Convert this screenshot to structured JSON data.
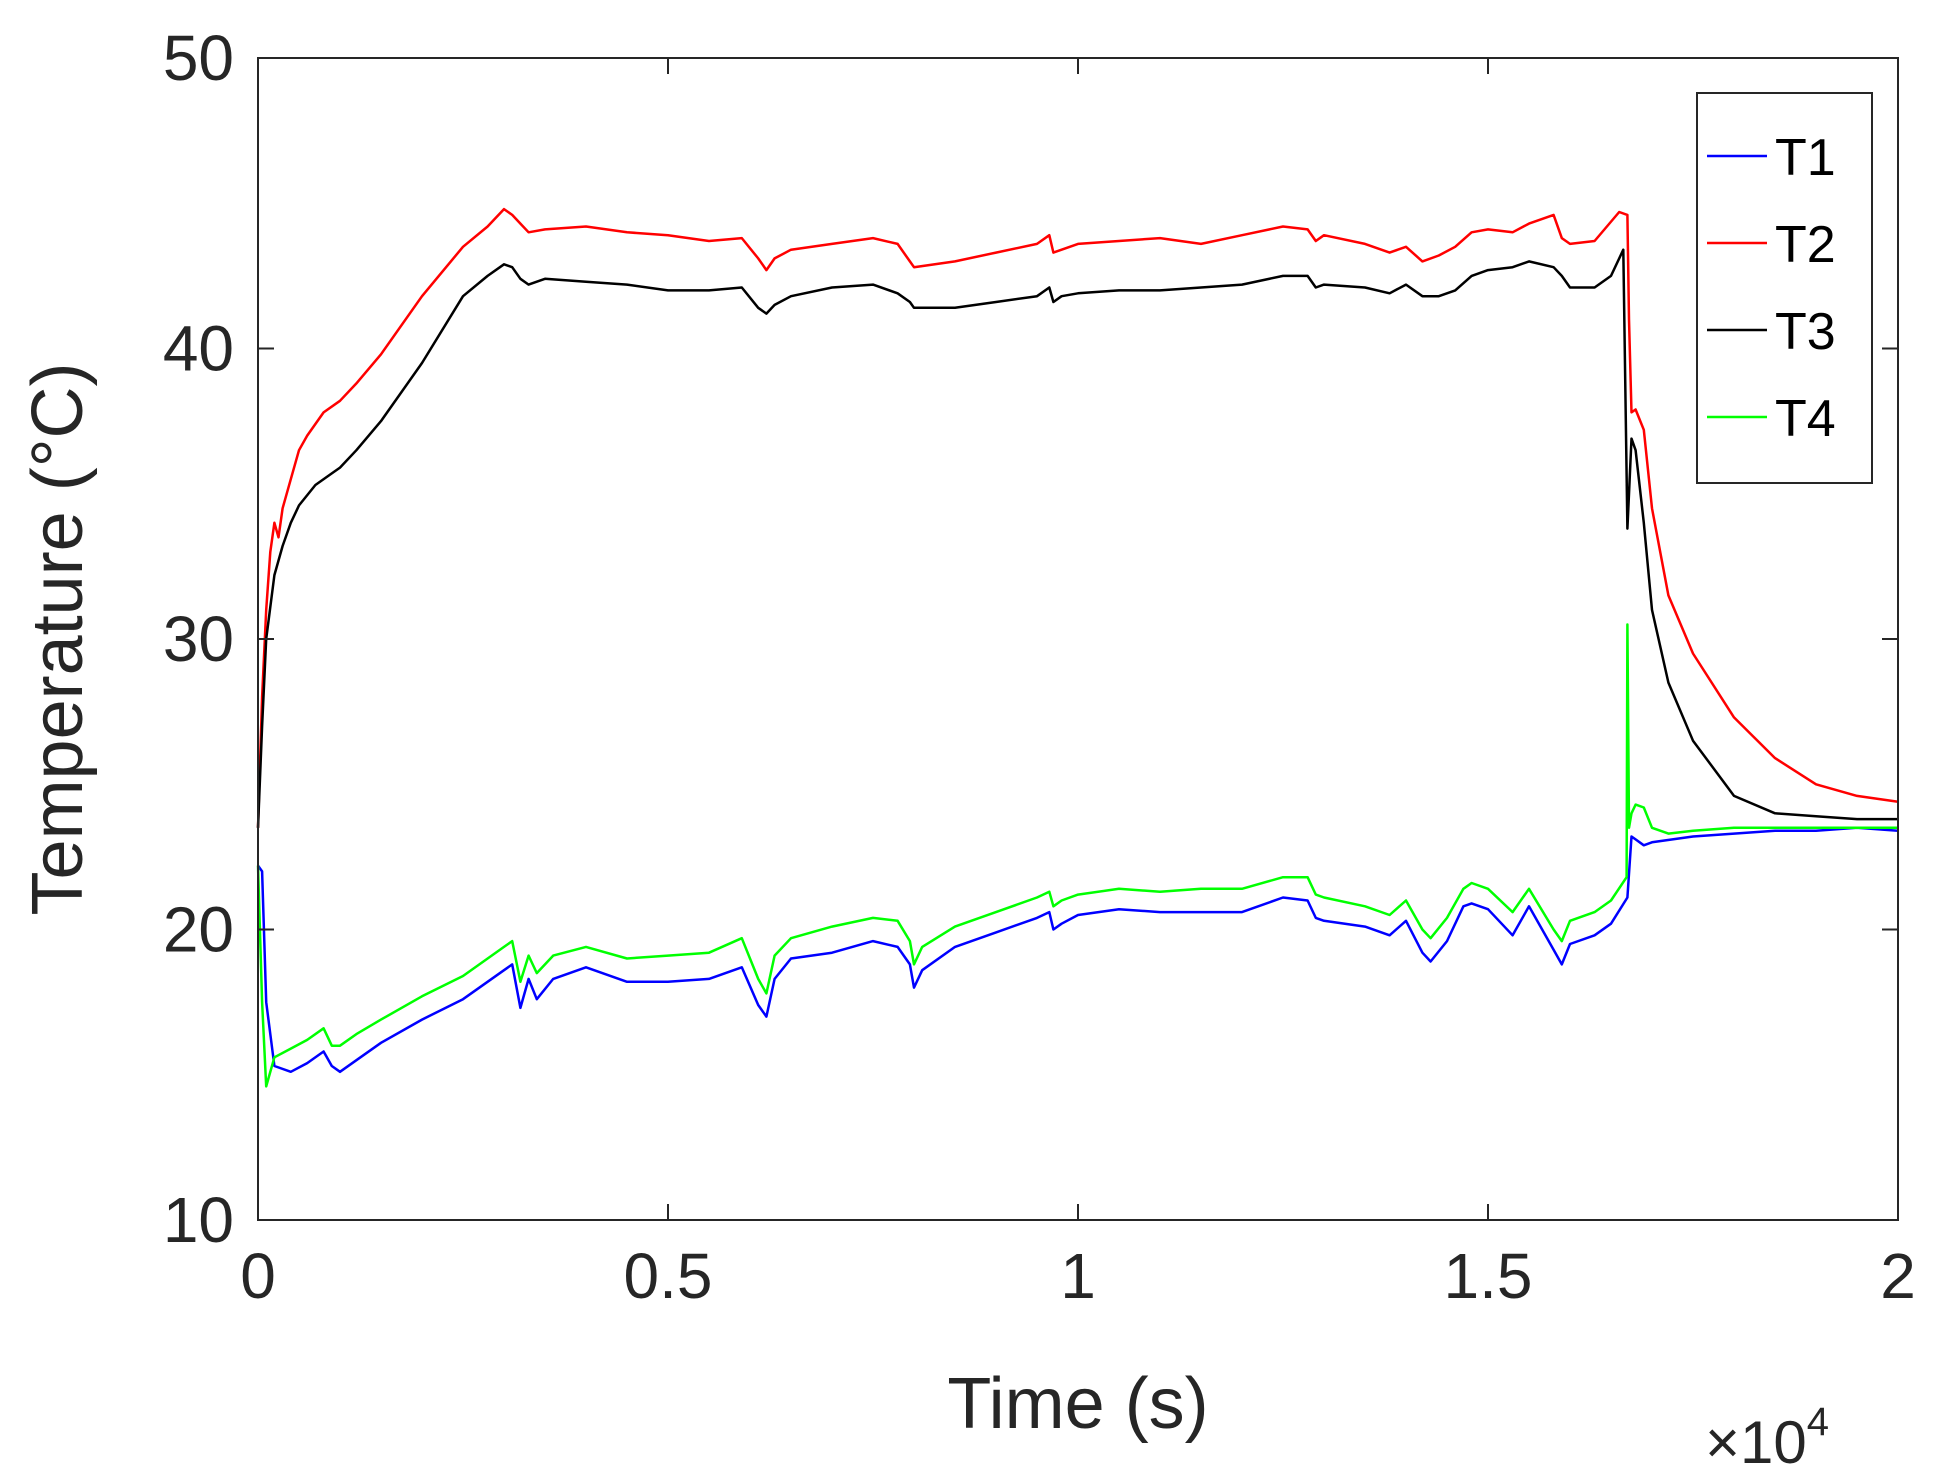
{
  "chart_data": {
    "type": "line",
    "title": "",
    "xlabel": "Time (s)",
    "ylabel": "Temperature (°C)",
    "x_multiplier_label": "×10",
    "x_multiplier_exponent": "4",
    "xlim": [
      0,
      20000
    ],
    "ylim": [
      10,
      50
    ],
    "x_ticks": [
      0,
      5000,
      10000,
      15000,
      20000
    ],
    "x_tick_labels": [
      "0",
      "0.5",
      "1",
      "1.5",
      "2"
    ],
    "y_ticks": [
      10,
      20,
      30,
      40,
      50
    ],
    "y_tick_labels": [
      "10",
      "20",
      "30",
      "40",
      "50"
    ],
    "grid": false,
    "legend_position": "top-right",
    "series": [
      {
        "name": "T1",
        "color": "#0000ff",
        "x": [
          0,
          50,
          100,
          200,
          400,
          600,
          800,
          900,
          1000,
          1200,
          1500,
          2000,
          2500,
          3000,
          3100,
          3200,
          3300,
          3400,
          3600,
          4000,
          4500,
          5000,
          5500,
          5900,
          6100,
          6200,
          6300,
          6500,
          7000,
          7500,
          7800,
          7950,
          8000,
          8100,
          8500,
          9000,
          9500,
          9650,
          9700,
          9800,
          10000,
          10500,
          11000,
          11500,
          12000,
          12500,
          12800,
          12900,
          13000,
          13500,
          13800,
          14000,
          14200,
          14300,
          14500,
          14700,
          14800,
          15000,
          15300,
          15500,
          15800,
          15900,
          16000,
          16300,
          16500,
          16700,
          16750,
          16800,
          16900,
          17000,
          17500,
          18000,
          18500,
          19000,
          19500,
          20000
        ],
        "y": [
          22.2,
          22.0,
          17.5,
          15.3,
          15.1,
          15.4,
          15.8,
          15.3,
          15.1,
          15.5,
          16.1,
          16.9,
          17.6,
          18.6,
          18.8,
          17.3,
          18.3,
          17.6,
          18.3,
          18.7,
          18.2,
          18.2,
          18.3,
          18.7,
          17.4,
          17.0,
          18.3,
          19.0,
          19.2,
          19.6,
          19.4,
          18.8,
          18.0,
          18.6,
          19.4,
          19.9,
          20.4,
          20.6,
          20.0,
          20.2,
          20.5,
          20.7,
          20.6,
          20.6,
          20.6,
          21.1,
          21.0,
          20.4,
          20.3,
          20.1,
          19.8,
          20.3,
          19.2,
          18.9,
          19.6,
          20.8,
          20.9,
          20.7,
          19.8,
          20.8,
          19.3,
          18.8,
          19.5,
          19.8,
          20.2,
          21.1,
          23.2,
          23.1,
          22.9,
          23.0,
          23.2,
          23.3,
          23.4,
          23.4,
          23.5,
          23.4
        ]
      },
      {
        "name": "T2",
        "color": "#ff0000",
        "x": [
          0,
          50,
          100,
          150,
          200,
          250,
          300,
          400,
          500,
          600,
          800,
          1000,
          1200,
          1500,
          2000,
          2500,
          2800,
          3000,
          3100,
          3200,
          3300,
          3500,
          4000,
          4500,
          5000,
          5500,
          5900,
          6100,
          6200,
          6300,
          6500,
          7000,
          7500,
          7800,
          7950,
          8000,
          8500,
          9000,
          9500,
          9650,
          9700,
          9800,
          10000,
          10500,
          11000,
          11500,
          12000,
          12500,
          12800,
          12900,
          13000,
          13500,
          13800,
          14000,
          14200,
          14400,
          14600,
          14800,
          15000,
          15300,
          15500,
          15800,
          15900,
          16000,
          16300,
          16600,
          16700,
          16720,
          16750,
          16800,
          16900,
          17000,
          17200,
          17500,
          18000,
          18500,
          19000,
          19500,
          20000
        ],
        "y": [
          23.5,
          28.0,
          31.0,
          33.0,
          34.0,
          33.5,
          34.5,
          35.5,
          36.5,
          37.0,
          37.8,
          38.2,
          38.8,
          39.8,
          41.8,
          43.5,
          44.2,
          44.8,
          44.6,
          44.3,
          44.0,
          44.1,
          44.2,
          44.0,
          43.9,
          43.7,
          43.8,
          43.1,
          42.7,
          43.1,
          43.4,
          43.6,
          43.8,
          43.6,
          43.0,
          42.8,
          43.0,
          43.3,
          43.6,
          43.9,
          43.3,
          43.4,
          43.6,
          43.7,
          43.8,
          43.6,
          43.9,
          44.2,
          44.1,
          43.7,
          43.9,
          43.6,
          43.3,
          43.5,
          43.0,
          43.2,
          43.5,
          44.0,
          44.1,
          44.0,
          44.3,
          44.6,
          43.8,
          43.6,
          43.7,
          44.7,
          44.6,
          41.0,
          37.8,
          37.9,
          37.2,
          34.5,
          31.5,
          29.5,
          27.3,
          25.9,
          25.0,
          24.6,
          24.4
        ]
      },
      {
        "name": "T3",
        "color": "#000000",
        "x": [
          0,
          50,
          100,
          200,
          300,
          400,
          500,
          700,
          900,
          1000,
          1200,
          1500,
          2000,
          2500,
          2800,
          3000,
          3100,
          3200,
          3300,
          3500,
          4000,
          4500,
          5000,
          5500,
          5900,
          6100,
          6200,
          6300,
          6500,
          7000,
          7500,
          7800,
          7950,
          8000,
          8500,
          9000,
          9500,
          9650,
          9700,
          9800,
          10000,
          10500,
          11000,
          11500,
          12000,
          12500,
          12800,
          12900,
          13000,
          13500,
          13800,
          14000,
          14200,
          14400,
          14600,
          14800,
          15000,
          15300,
          15500,
          15800,
          15900,
          16000,
          16300,
          16500,
          16650,
          16700,
          16720,
          16750,
          16800,
          16900,
          17000,
          17200,
          17500,
          18000,
          18500,
          19000,
          19500,
          20000
        ],
        "y": [
          23.5,
          27.0,
          30.0,
          32.2,
          33.2,
          34.0,
          34.6,
          35.3,
          35.7,
          35.9,
          36.5,
          37.5,
          39.5,
          41.8,
          42.5,
          42.9,
          42.8,
          42.4,
          42.2,
          42.4,
          42.3,
          42.2,
          42.0,
          42.0,
          42.1,
          41.4,
          41.2,
          41.5,
          41.8,
          42.1,
          42.2,
          41.9,
          41.6,
          41.4,
          41.4,
          41.6,
          41.8,
          42.1,
          41.6,
          41.8,
          41.9,
          42.0,
          42.0,
          42.1,
          42.2,
          42.5,
          42.5,
          42.1,
          42.2,
          42.1,
          41.9,
          42.2,
          41.8,
          41.8,
          42.0,
          42.5,
          42.7,
          42.8,
          43.0,
          42.8,
          42.5,
          42.1,
          42.1,
          42.5,
          43.4,
          33.8,
          35.0,
          36.9,
          36.5,
          34.0,
          31.0,
          28.5,
          26.5,
          24.6,
          24.0,
          23.9,
          23.8,
          23.8
        ]
      },
      {
        "name": "T4",
        "color": "#00ff00",
        "x": [
          0,
          50,
          100,
          200,
          400,
          600,
          800,
          900,
          1000,
          1200,
          1500,
          2000,
          2500,
          3000,
          3100,
          3200,
          3300,
          3400,
          3600,
          4000,
          4500,
          5000,
          5500,
          5900,
          6100,
          6200,
          6300,
          6500,
          7000,
          7500,
          7800,
          7950,
          8000,
          8100,
          8500,
          9000,
          9500,
          9650,
          9700,
          9800,
          10000,
          10500,
          11000,
          11500,
          12000,
          12500,
          12800,
          12900,
          13000,
          13500,
          13800,
          14000,
          14200,
          14300,
          14500,
          14700,
          14800,
          15000,
          15300,
          15500,
          15800,
          15900,
          16000,
          16300,
          16500,
          16690,
          16700,
          16720,
          16750,
          16800,
          16900,
          17000,
          17200,
          17500,
          18000,
          18500,
          19000,
          19500,
          20000
        ],
        "y": [
          22.2,
          17.5,
          14.6,
          15.6,
          15.9,
          16.2,
          16.6,
          16.0,
          16.0,
          16.4,
          16.9,
          17.7,
          18.4,
          19.4,
          19.6,
          18.2,
          19.1,
          18.5,
          19.1,
          19.4,
          19.0,
          19.1,
          19.2,
          19.7,
          18.3,
          17.8,
          19.1,
          19.7,
          20.1,
          20.4,
          20.3,
          19.6,
          18.8,
          19.4,
          20.1,
          20.6,
          21.1,
          21.3,
          20.8,
          21.0,
          21.2,
          21.4,
          21.3,
          21.4,
          21.4,
          21.8,
          21.8,
          21.2,
          21.1,
          20.8,
          20.5,
          21.0,
          20.0,
          19.7,
          20.4,
          21.4,
          21.6,
          21.4,
          20.6,
          21.4,
          20.0,
          19.6,
          20.3,
          20.6,
          21.0,
          21.8,
          30.5,
          23.5,
          24.0,
          24.3,
          24.2,
          23.5,
          23.3,
          23.4,
          23.5,
          23.5,
          23.5,
          23.5,
          23.5
        ]
      }
    ]
  }
}
